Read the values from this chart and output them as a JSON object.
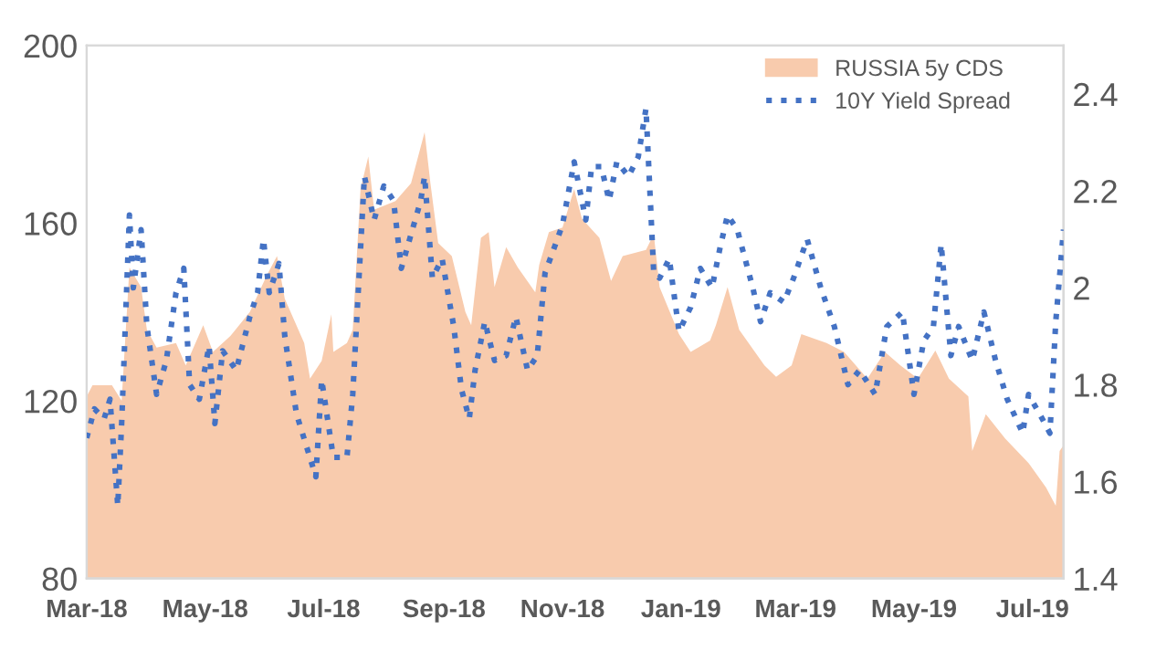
{
  "chart_data": {
    "type": "area",
    "xlim": [
      "2018-03-01",
      "2019-07-17"
    ],
    "xticks": [
      {
        "value": "2018-03-01",
        "label": "Mar-18"
      },
      {
        "value": "2018-05-01",
        "label": "May-18"
      },
      {
        "value": "2018-07-01",
        "label": "Jul-18"
      },
      {
        "value": "2018-09-01",
        "label": "Sep-18"
      },
      {
        "value": "2018-11-01",
        "label": "Nov-18"
      },
      {
        "value": "2019-01-01",
        "label": "Jan-19"
      },
      {
        "value": "2019-03-01",
        "label": "Mar-19"
      },
      {
        "value": "2019-05-01",
        "label": "May-19"
      },
      {
        "value": "2019-07-01",
        "label": "Jul-19"
      }
    ],
    "ylim": [
      80,
      200
    ],
    "yticks": [
      80,
      120,
      160,
      200
    ],
    "y2lim": [
      1.4,
      2.5
    ],
    "y2ticks": [
      1.4,
      1.6,
      1.8,
      2,
      2.2,
      2.4
    ],
    "grid": false,
    "legend": "top right",
    "series": [
      {
        "name": "RUSSIA 5y CDS",
        "color": "#f8cbad",
        "x": [
          "2018-03-01",
          "2018-03-04",
          "2018-03-14",
          "2018-03-19",
          "2018-03-23",
          "2018-03-29",
          "2018-04-01",
          "2018-04-06",
          "2018-04-16",
          "2018-04-21",
          "2018-04-30",
          "2018-05-05",
          "2018-05-14",
          "2018-05-24",
          "2018-06-02",
          "2018-06-07",
          "2018-06-11",
          "2018-06-21",
          "2018-06-24",
          "2018-06-30",
          "2018-07-05",
          "2018-07-06",
          "2018-07-13",
          "2018-07-16",
          "2018-07-20",
          "2018-07-24",
          "2018-07-27",
          "2018-08-07",
          "2018-08-15",
          "2018-08-22",
          "2018-08-25",
          "2018-08-29",
          "2018-09-05",
          "2018-09-12",
          "2018-09-15",
          "2018-09-20",
          "2018-09-24",
          "2018-09-27",
          "2018-10-03",
          "2018-10-09",
          "2018-10-18",
          "2018-10-20",
          "2018-10-25",
          "2018-11-01",
          "2018-11-07",
          "2018-11-11",
          "2018-11-20",
          "2018-11-26",
          "2018-12-02",
          "2018-12-14",
          "2018-12-18",
          "2018-12-21",
          "2018-12-31",
          "2019-01-06",
          "2019-01-16",
          "2019-01-19",
          "2019-01-25",
          "2019-01-31",
          "2019-02-13",
          "2019-02-19",
          "2019-02-27",
          "2019-03-04",
          "2019-03-17",
          "2019-03-26",
          "2019-04-07",
          "2019-04-16",
          "2019-04-24",
          "2019-05-03",
          "2019-05-12",
          "2019-05-19",
          "2019-05-29",
          "2019-05-31",
          "2019-06-07",
          "2019-06-17",
          "2019-06-29",
          "2019-07-08",
          "2019-07-13",
          "2019-07-15",
          "2019-07-17"
        ],
        "values": [
          121,
          123.5,
          123.5,
          120,
          150,
          145.6,
          136,
          132,
          133,
          128,
          137,
          131,
          134.6,
          140,
          148.5,
          152.6,
          143,
          133,
          125,
          129,
          139.5,
          131,
          133,
          136,
          167.7,
          175,
          163,
          165,
          169,
          180.5,
          169,
          155.5,
          152.6,
          140,
          137,
          156.7,
          158,
          145.6,
          154.6,
          150,
          144.4,
          150.6,
          158,
          159,
          167.7,
          161,
          156.7,
          147,
          152.6,
          154,
          157.5,
          145.6,
          135,
          131,
          133.6,
          137,
          145.6,
          136,
          128,
          125.4,
          128,
          135,
          133,
          131,
          125,
          131,
          128,
          125,
          131.3,
          125,
          121,
          108.7,
          117,
          111.5,
          106,
          100.5,
          96.4,
          108.7,
          110
        ]
      },
      {
        "name": "10Y Yield Spread",
        "type": "line",
        "axis": "y2",
        "color": "#4472c4",
        "line_style": "dotted",
        "marker": "none",
        "x": [
          "2018-03-01",
          "2018-03-05",
          "2018-03-10",
          "2018-03-13",
          "2018-03-17",
          "2018-03-19",
          "2018-03-23",
          "2018-03-25",
          "2018-03-29",
          "2018-04-01",
          "2018-04-06",
          "2018-04-11",
          "2018-04-16",
          "2018-04-20",
          "2018-04-23",
          "2018-04-28",
          "2018-05-03",
          "2018-05-06",
          "2018-05-10",
          "2018-05-17",
          "2018-05-24",
          "2018-05-28",
          "2018-05-31",
          "2018-06-03",
          "2018-06-08",
          "2018-06-11",
          "2018-06-17",
          "2018-06-27",
          "2018-06-30",
          "2018-07-06",
          "2018-07-13",
          "2018-07-16",
          "2018-07-22",
          "2018-07-27",
          "2018-08-01",
          "2018-08-06",
          "2018-08-10",
          "2018-08-20",
          "2018-08-22",
          "2018-08-26",
          "2018-08-31",
          "2018-09-06",
          "2018-09-10",
          "2018-09-14",
          "2018-09-17",
          "2018-09-22",
          "2018-09-27",
          "2018-10-03",
          "2018-10-08",
          "2018-10-14",
          "2018-10-19",
          "2018-10-23",
          "2018-11-01",
          "2018-11-07",
          "2018-11-13",
          "2018-11-16",
          "2018-11-21",
          "2018-11-25",
          "2018-11-29",
          "2018-12-05",
          "2018-12-10",
          "2018-12-14",
          "2018-12-18",
          "2018-12-21",
          "2018-12-26",
          "2018-12-31",
          "2019-01-06",
          "2019-01-11",
          "2019-01-17",
          "2019-01-21",
          "2019-01-25",
          "2019-01-30",
          "2019-02-07",
          "2019-02-11",
          "2019-02-16",
          "2019-02-23",
          "2019-02-28",
          "2019-03-07",
          "2019-03-14",
          "2019-03-21",
          "2019-03-28",
          "2019-04-03",
          "2019-04-11",
          "2019-04-17",
          "2019-04-25",
          "2019-05-01",
          "2019-05-06",
          "2019-05-11",
          "2019-05-15",
          "2019-05-20",
          "2019-05-24",
          "2019-05-31",
          "2019-06-06",
          "2019-06-12",
          "2019-06-18",
          "2019-06-26",
          "2019-06-29",
          "2019-07-06",
          "2019-07-10",
          "2019-07-13",
          "2019-07-17"
        ],
        "values": [
          1.69,
          1.75,
          1.73,
          1.77,
          1.55,
          1.72,
          2.15,
          2.0,
          2.12,
          1.92,
          1.78,
          1.85,
          1.99,
          2.04,
          1.8,
          1.77,
          1.88,
          1.72,
          1.87,
          1.83,
          1.94,
          1.99,
          2.1,
          1.99,
          2.05,
          1.9,
          1.74,
          1.61,
          1.81,
          1.65,
          1.65,
          1.78,
          2.23,
          2.14,
          2.21,
          2.18,
          2.04,
          2.18,
          2.23,
          2.02,
          2.06,
          1.92,
          1.79,
          1.73,
          1.83,
          1.93,
          1.85,
          1.86,
          1.94,
          1.83,
          1.86,
          2.03,
          2.13,
          2.26,
          2.14,
          2.25,
          2.25,
          2.18,
          2.26,
          2.23,
          2.27,
          2.37,
          2.03,
          2.02,
          2.06,
          1.91,
          1.96,
          2.04,
          2.0,
          2.08,
          2.15,
          2.12,
          2.0,
          1.93,
          1.99,
          1.97,
          2.02,
          2.1,
          2.0,
          1.92,
          1.8,
          1.83,
          1.78,
          1.92,
          1.95,
          1.78,
          1.89,
          1.92,
          2.09,
          1.86,
          1.92,
          1.85,
          1.95,
          1.85,
          1.77,
          1.7,
          1.78,
          1.73,
          1.7,
          1.93,
          2.12
        ]
      }
    ]
  }
}
